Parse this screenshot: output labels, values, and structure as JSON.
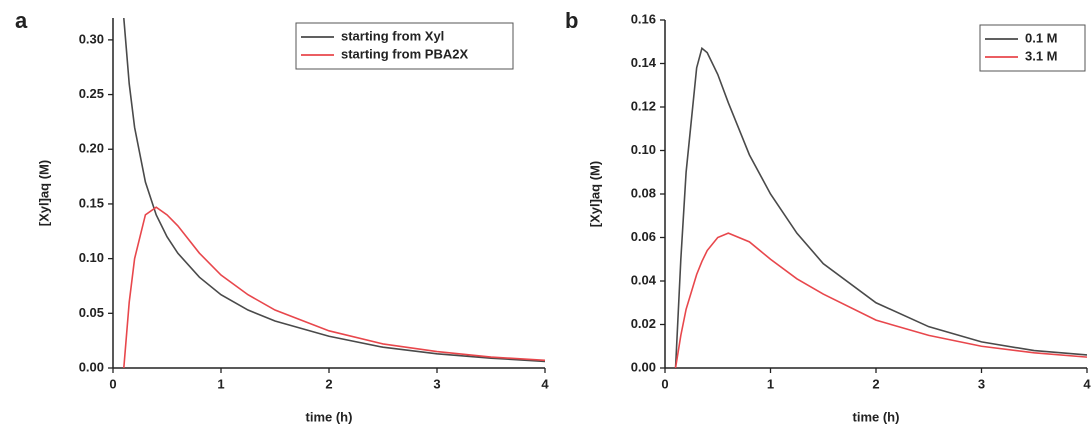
{
  "chart_data": [
    {
      "type": "line",
      "panel_label": "a",
      "xlabel": "time (h)",
      "ylabel": "[Xyl]aq (M)",
      "xlim": [
        0,
        4
      ],
      "xticks": [
        0,
        1,
        2,
        3,
        4
      ],
      "ylim": [
        0,
        0.32
      ],
      "yticks": [
        {
          "value": 0,
          "label": "0.00"
        },
        {
          "value": 0.05,
          "label": "0.05"
        },
        {
          "value": 0.1,
          "label": "0.10"
        },
        {
          "value": 0.15,
          "label": "0.15"
        },
        {
          "value": 0.2,
          "label": "0.20"
        },
        {
          "value": 0.25,
          "label": "0.25"
        },
        {
          "value": 0.3,
          "label": "0.30"
        }
      ],
      "legend": "upper right",
      "x": [
        0.1,
        0.15,
        0.2,
        0.3,
        0.4,
        0.5,
        0.6,
        0.8,
        1.0,
        1.25,
        1.5,
        2.0,
        2.5,
        3.0,
        3.5,
        4.0
      ],
      "series": [
        {
          "name": "starting from Xyl",
          "color": "#4a4a4a",
          "values": [
            0.32,
            0.26,
            0.22,
            0.17,
            0.14,
            0.12,
            0.105,
            0.083,
            0.067,
            0.053,
            0.043,
            0.029,
            0.019,
            0.013,
            0.009,
            0.006
          ]
        },
        {
          "name": "starting from PBA2X",
          "color": "#e8474c",
          "values": [
            0,
            0.06,
            0.1,
            0.14,
            0.147,
            0.14,
            0.13,
            0.105,
            0.085,
            0.067,
            0.053,
            0.034,
            0.022,
            0.015,
            0.01,
            0.007
          ]
        }
      ]
    },
    {
      "type": "line",
      "panel_label": "b",
      "xlabel": "time (h)",
      "ylabel": "[Xyl]aq (M)",
      "xlim": [
        0,
        4
      ],
      "xticks": [
        0,
        1,
        2,
        3,
        4
      ],
      "ylim": [
        0,
        0.16
      ],
      "yticks": [
        {
          "value": 0,
          "label": "0.00"
        },
        {
          "value": 0.02,
          "label": "0.02"
        },
        {
          "value": 0.04,
          "label": "0.04"
        },
        {
          "value": 0.06,
          "label": "0.06"
        },
        {
          "value": 0.08,
          "label": "0.08"
        },
        {
          "value": 0.1,
          "label": "0.10"
        },
        {
          "value": 0.12,
          "label": "0.12"
        },
        {
          "value": 0.14,
          "label": "0.14"
        },
        {
          "value": 0.16,
          "label": "0.16"
        }
      ],
      "legend": "upper right",
      "x": [
        0.1,
        0.15,
        0.2,
        0.3,
        0.35,
        0.4,
        0.5,
        0.6,
        0.8,
        1.0,
        1.25,
        1.5,
        2.0,
        2.5,
        3.0,
        3.5,
        4.0
      ],
      "series": [
        {
          "name": "0.1 M",
          "color": "#4a4a4a",
          "values": [
            0,
            0.05,
            0.09,
            0.138,
            0.147,
            0.145,
            0.135,
            0.122,
            0.098,
            0.08,
            0.062,
            0.048,
            0.03,
            0.019,
            0.012,
            0.008,
            0.006
          ]
        },
        {
          "name": "3.1 M",
          "color": "#e8474c",
          "values": [
            0,
            0.015,
            0.027,
            0.043,
            0.049,
            0.054,
            0.06,
            0.062,
            0.058,
            0.05,
            0.041,
            0.034,
            0.022,
            0.015,
            0.01,
            0.007,
            0.005
          ]
        }
      ]
    }
  ]
}
